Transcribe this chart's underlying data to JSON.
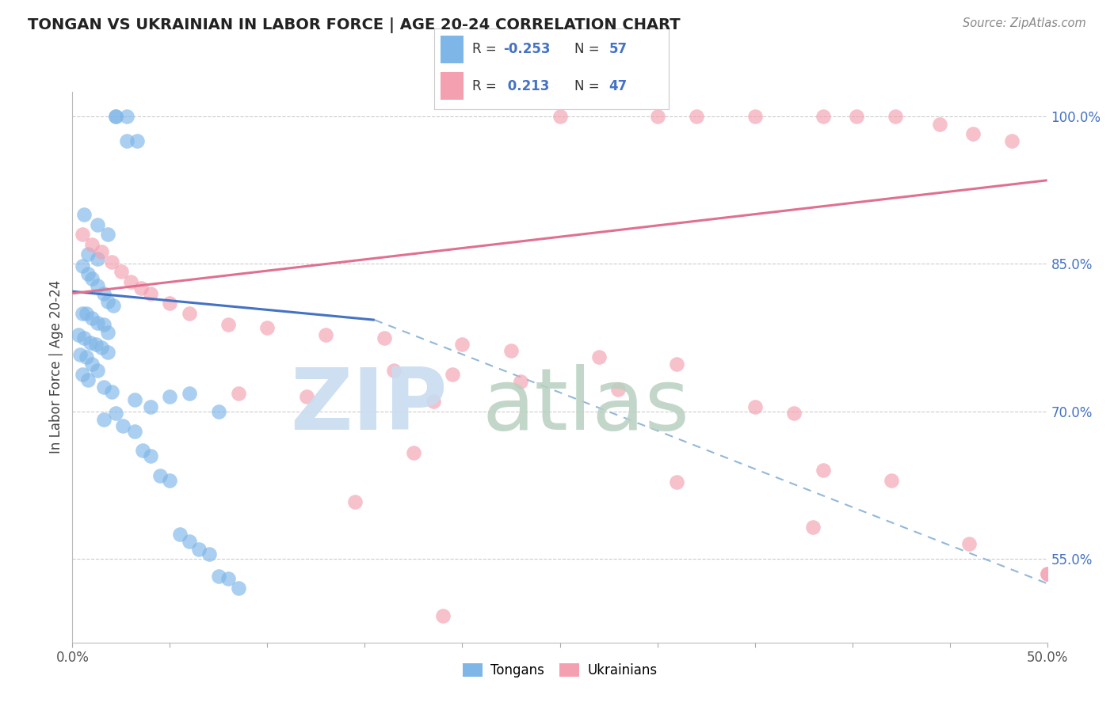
{
  "title": "TONGAN VS UKRAINIAN IN LABOR FORCE | AGE 20-24 CORRELATION CHART",
  "source": "Source: ZipAtlas.com",
  "ylabel": "In Labor Force | Age 20-24",
  "xlim": [
    0.0,
    0.5
  ],
  "ylim": [
    0.465,
    1.025
  ],
  "ytick_positions": [
    0.55,
    0.7,
    0.85,
    1.0
  ],
  "ytick_labels": [
    "55.0%",
    "70.0%",
    "85.0%",
    "100.0%"
  ],
  "background_color": "#ffffff",
  "tongan_color": "#7eb6e8",
  "ukrainian_color": "#f4a0b0",
  "blue_line_solid": {
    "x0": 0.0,
    "x1": 0.155,
    "y0": 0.822,
    "y1": 0.793
  },
  "blue_line_dashed": {
    "x0": 0.155,
    "x1": 0.5,
    "y0": 0.793,
    "y1": 0.525
  },
  "pink_line": {
    "x0": 0.0,
    "x1": 0.5,
    "y0": 0.82,
    "y1": 0.935
  },
  "tongan_x": [
    0.022,
    0.028,
    0.033,
    0.022,
    0.028,
    0.006,
    0.013,
    0.018,
    0.008,
    0.013,
    0.005,
    0.008,
    0.01,
    0.013,
    0.016,
    0.018,
    0.021,
    0.005,
    0.007,
    0.01,
    0.013,
    0.016,
    0.018,
    0.003,
    0.006,
    0.009,
    0.012,
    0.015,
    0.018,
    0.004,
    0.007,
    0.01,
    0.013,
    0.005,
    0.008,
    0.016,
    0.02,
    0.06,
    0.05,
    0.032,
    0.04,
    0.075,
    0.022,
    0.016,
    0.026,
    0.032,
    0.036,
    0.04,
    0.045,
    0.05,
    0.055,
    0.06,
    0.065,
    0.07,
    0.075,
    0.08,
    0.085
  ],
  "tongan_y": [
    1.0,
    1.0,
    0.975,
    1.0,
    0.975,
    0.9,
    0.89,
    0.88,
    0.86,
    0.855,
    0.848,
    0.84,
    0.835,
    0.828,
    0.82,
    0.812,
    0.808,
    0.8,
    0.8,
    0.795,
    0.79,
    0.788,
    0.78,
    0.778,
    0.775,
    0.77,
    0.768,
    0.765,
    0.76,
    0.758,
    0.755,
    0.748,
    0.742,
    0.738,
    0.732,
    0.725,
    0.72,
    0.718,
    0.715,
    0.712,
    0.705,
    0.7,
    0.698,
    0.692,
    0.685,
    0.68,
    0.66,
    0.655,
    0.635,
    0.63,
    0.575,
    0.568,
    0.56,
    0.555,
    0.532,
    0.53,
    0.52
  ],
  "ukrainian_x": [
    0.25,
    0.3,
    0.32,
    0.35,
    0.385,
    0.402,
    0.422,
    0.445,
    0.462,
    0.482,
    0.005,
    0.01,
    0.015,
    0.02,
    0.025,
    0.03,
    0.035,
    0.04,
    0.05,
    0.06,
    0.08,
    0.1,
    0.13,
    0.16,
    0.2,
    0.225,
    0.27,
    0.31,
    0.165,
    0.195,
    0.23,
    0.28,
    0.085,
    0.12,
    0.185,
    0.35,
    0.37,
    0.175,
    0.385,
    0.42,
    0.145,
    0.38,
    0.46,
    0.5,
    0.31,
    0.19,
    0.5
  ],
  "ukrainian_y": [
    1.0,
    1.0,
    1.0,
    1.0,
    1.0,
    1.0,
    1.0,
    0.992,
    0.982,
    0.975,
    0.88,
    0.87,
    0.862,
    0.852,
    0.842,
    0.832,
    0.825,
    0.82,
    0.81,
    0.8,
    0.788,
    0.785,
    0.778,
    0.775,
    0.768,
    0.762,
    0.755,
    0.748,
    0.742,
    0.738,
    0.73,
    0.722,
    0.718,
    0.715,
    0.71,
    0.705,
    0.698,
    0.658,
    0.64,
    0.63,
    0.608,
    0.582,
    0.565,
    0.535,
    0.628,
    0.492,
    0.535
  ]
}
